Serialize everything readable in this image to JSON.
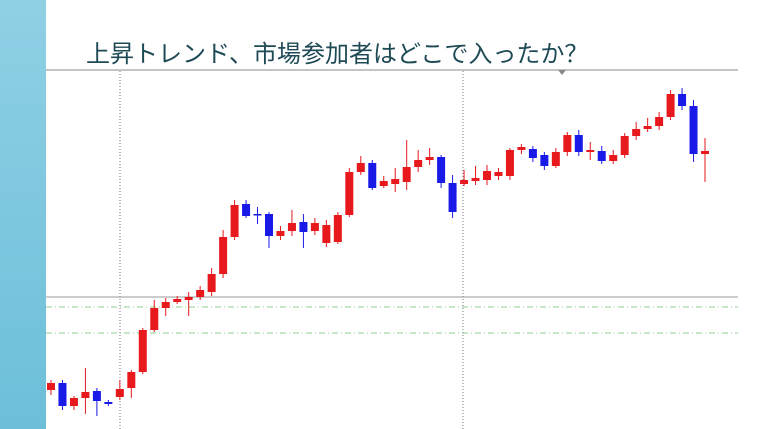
{
  "chart_data": {
    "type": "candlestick",
    "title": "上昇トレンド、市場参加者はどこで入ったか？",
    "ylim": [
      0,
      360
    ],
    "up_color": "#e8191c",
    "down_color": "#1a1ae8",
    "open": [
      39,
      46,
      23,
      31,
      38,
      27,
      32,
      41,
      57,
      99,
      121,
      127,
      129,
      132,
      137,
      155,
      192,
      225,
      215,
      215,
      193,
      198,
      207,
      198,
      186,
      187,
      214,
      257,
      266,
      243,
      245,
      247,
      262,
      269,
      272,
      246,
      245,
      248,
      249,
      253,
      253,
      279,
      280,
      274,
      263,
      277,
      294,
      277,
      278,
      268,
      274,
      293,
      300,
      303,
      312,
      335,
      323,
      275
    ],
    "high": [
      49,
      49,
      33,
      61,
      41,
      29,
      49,
      59,
      101,
      129,
      131,
      133,
      137,
      143,
      161,
      199,
      229,
      229,
      222,
      217,
      203,
      219,
      215,
      211,
      209,
      217,
      261,
      273,
      269,
      253,
      261,
      289,
      279,
      281,
      274,
      254,
      259,
      263,
      264,
      261,
      281,
      285,
      283,
      277,
      281,
      297,
      299,
      287,
      283,
      279,
      296,
      307,
      311,
      317,
      339,
      341,
      329,
      291
    ],
    "low": [
      34,
      19,
      19,
      15,
      13,
      23,
      29,
      31,
      55,
      97,
      113,
      125,
      113,
      129,
      133,
      151,
      189,
      211,
      205,
      181,
      189,
      193,
      181,
      194,
      182,
      185,
      212,
      254,
      239,
      241,
      237,
      239,
      257,
      264,
      241,
      211,
      243,
      244,
      244,
      249,
      249,
      275,
      267,
      259,
      261,
      273,
      273,
      269,
      265,
      265,
      271,
      289,
      297,
      299,
      309,
      319,
      267,
      247
    ],
    "close": [
      46,
      23,
      31,
      37,
      28,
      25,
      40,
      57,
      99,
      121,
      127,
      130,
      132,
      139,
      155,
      192,
      224,
      213,
      214,
      193,
      198,
      206,
      197,
      206,
      204,
      214,
      257,
      266,
      241,
      248,
      250,
      262,
      269,
      272,
      246,
      217,
      249,
      251,
      258,
      257,
      279,
      282,
      271,
      263,
      277,
      294,
      277,
      279,
      268,
      274,
      293,
      300,
      303,
      312,
      335,
      323,
      275,
      278
    ],
    "hlines": [
      {
        "value": 132,
        "color": "#999999",
        "style": "solid"
      },
      {
        "value": 122,
        "color": "#8fd18f",
        "style": "dashdot"
      },
      {
        "value": 96,
        "color": "#8fd18f",
        "style": "dashdot"
      }
    ]
  }
}
